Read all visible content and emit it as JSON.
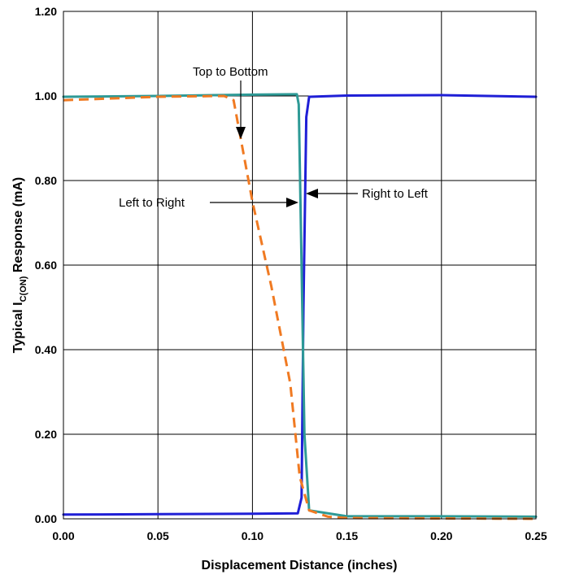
{
  "chart_data": {
    "type": "line",
    "title": "",
    "xlabel": "Displacement Distance (inches)",
    "ylabel_main": "Typical I",
    "ylabel_sub": "C(ON)",
    "ylabel_rest": " Response (mA)",
    "xlim": [
      0,
      0.25
    ],
    "ylim": [
      0,
      1.2
    ],
    "x_ticks": [
      0,
      0.05,
      0.1,
      0.15,
      0.2,
      0.25
    ],
    "x_tick_labels": [
      "0.00",
      "0.05",
      "0.10",
      "0.15",
      "0.20",
      "0.25"
    ],
    "y_ticks": [
      0,
      0.2,
      0.4,
      0.6,
      0.8,
      1.0,
      1.2
    ],
    "y_tick_labels": [
      "0.00",
      "0.20",
      "0.40",
      "0.60",
      "0.80",
      "1.00",
      "1.20"
    ],
    "grid": true,
    "series": [
      {
        "color": "#1f1fd6",
        "dashed": false,
        "points": [
          [
            0,
            0.01
          ],
          [
            0.05,
            0.011
          ],
          [
            0.1,
            0.012
          ],
          [
            0.124,
            0.013
          ],
          [
            0.126,
            0.05
          ],
          [
            0.127,
            0.5
          ],
          [
            0.1285,
            0.95
          ],
          [
            0.13,
            0.998
          ],
          [
            0.15,
            1.001
          ],
          [
            0.2,
            1.002
          ],
          [
            0.25,
            0.998
          ]
        ]
      },
      {
        "color": "#2e9a96",
        "dashed": false,
        "points": [
          [
            0,
            0.998
          ],
          [
            0.05,
            1.0
          ],
          [
            0.1,
            1.003
          ],
          [
            0.1235,
            1.004
          ],
          [
            0.1245,
            0.98
          ],
          [
            0.126,
            0.6
          ],
          [
            0.1275,
            0.2
          ],
          [
            0.13,
            0.02
          ],
          [
            0.15,
            0.006
          ],
          [
            0.2,
            0.006
          ],
          [
            0.25,
            0.005
          ]
        ]
      },
      {
        "color": "#f07a22",
        "dashed": true,
        "points": [
          [
            0,
            0.99
          ],
          [
            0.05,
            0.998
          ],
          [
            0.085,
            1.0
          ],
          [
            0.09,
            0.99
          ],
          [
            0.1,
            0.75
          ],
          [
            0.11,
            0.55
          ],
          [
            0.12,
            0.32
          ],
          [
            0.125,
            0.1
          ],
          [
            0.13,
            0.02
          ],
          [
            0.14,
            0.005
          ],
          [
            0.15,
            0.002
          ],
          [
            0.25,
            0.0
          ]
        ]
      }
    ],
    "annotations": [
      {
        "text": "Top to Bottom",
        "target": [
          0.094,
          0.9
        ]
      },
      {
        "text": "Left to Right",
        "target": [
          0.1245,
          0.76
        ]
      },
      {
        "text": "Right to Left",
        "target": [
          0.1285,
          0.76
        ]
      }
    ]
  }
}
